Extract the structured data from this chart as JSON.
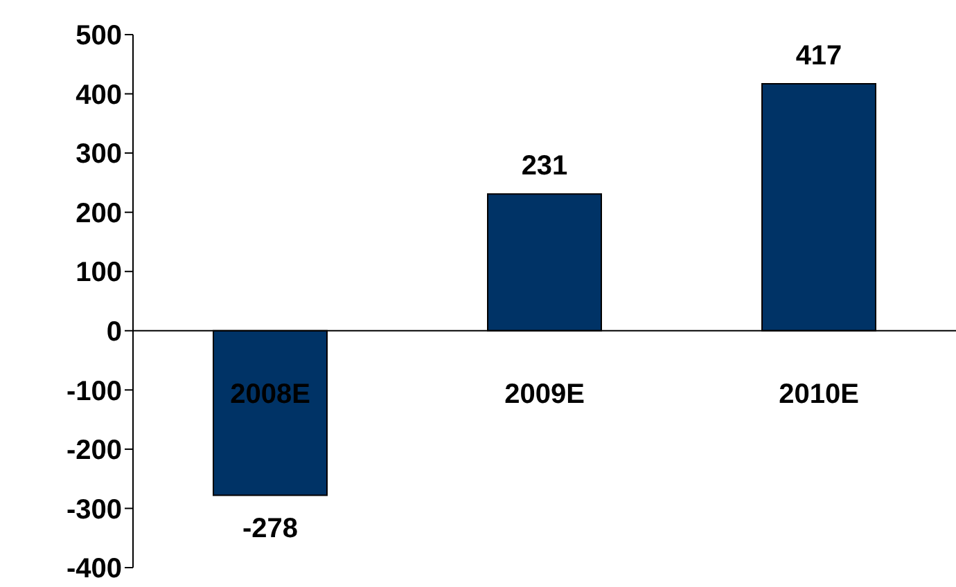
{
  "chart_data": {
    "type": "bar",
    "categories": [
      "2008E",
      "2009E",
      "2010E"
    ],
    "values": [
      -278,
      231,
      417
    ],
    "color": "#003366",
    "ylim": [
      -400,
      500
    ],
    "yticks": [
      -400,
      -300,
      -200,
      -100,
      0,
      100,
      200,
      300,
      400,
      500
    ],
    "data_labels": true,
    "grid": false,
    "legend": false
  }
}
